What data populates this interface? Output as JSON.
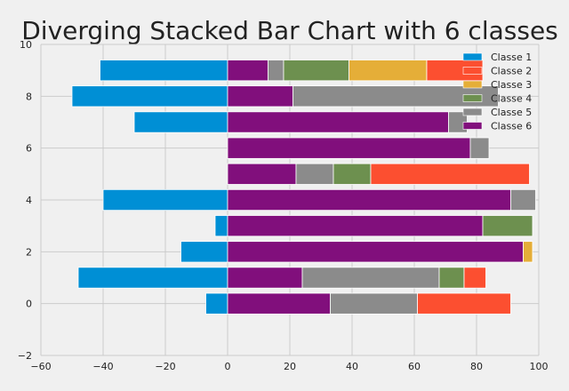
{
  "chart_data": {
    "type": "bar",
    "orientation": "horizontal",
    "stacking": "diverging",
    "title": "Diverging Stacked Bar Chart with 6 classes",
    "xlabel": "",
    "ylabel": "",
    "xlim": [
      -60,
      100
    ],
    "ylim": [
      -2,
      10
    ],
    "xticks": [
      -60,
      -40,
      -20,
      0,
      20,
      40,
      60,
      80,
      100
    ],
    "yticks": [
      -2,
      0,
      2,
      4,
      6,
      8,
      10
    ],
    "grid": true,
    "legend_position": "top-right",
    "y": [
      0,
      1,
      2,
      3,
      4,
      5,
      6,
      7,
      8,
      9
    ],
    "series": [
      {
        "name": "Classe 1",
        "color": "#008fd5",
        "values": [
          -7,
          -48,
          -15,
          -4,
          -40,
          0,
          0,
          -30,
          -50,
          -41
        ]
      },
      {
        "name": "Classe 2",
        "color": "#fc4f30",
        "values": [
          30,
          7,
          0,
          0,
          0,
          51,
          0,
          0,
          0,
          18
        ]
      },
      {
        "name": "Classe 3",
        "color": "#e5ae38",
        "values": [
          0,
          0,
          3,
          0,
          0,
          0,
          0,
          0,
          0,
          25
        ]
      },
      {
        "name": "Classe 4",
        "color": "#6d904f",
        "values": [
          0,
          8,
          0,
          16,
          0,
          12,
          0,
          0,
          0,
          21
        ]
      },
      {
        "name": "Classe 5",
        "color": "#8b8b8b",
        "values": [
          28,
          44,
          0,
          0,
          8,
          12,
          6,
          6,
          66,
          5
        ]
      },
      {
        "name": "Classe 6",
        "color": "#810f7c",
        "values": [
          33,
          24,
          95,
          82,
          91,
          22,
          78,
          71,
          21,
          13
        ]
      }
    ],
    "stack_order": [
      "Classe 6",
      "Classe 5",
      "Classe 4",
      "Classe 3",
      "Classe 2"
    ]
  }
}
